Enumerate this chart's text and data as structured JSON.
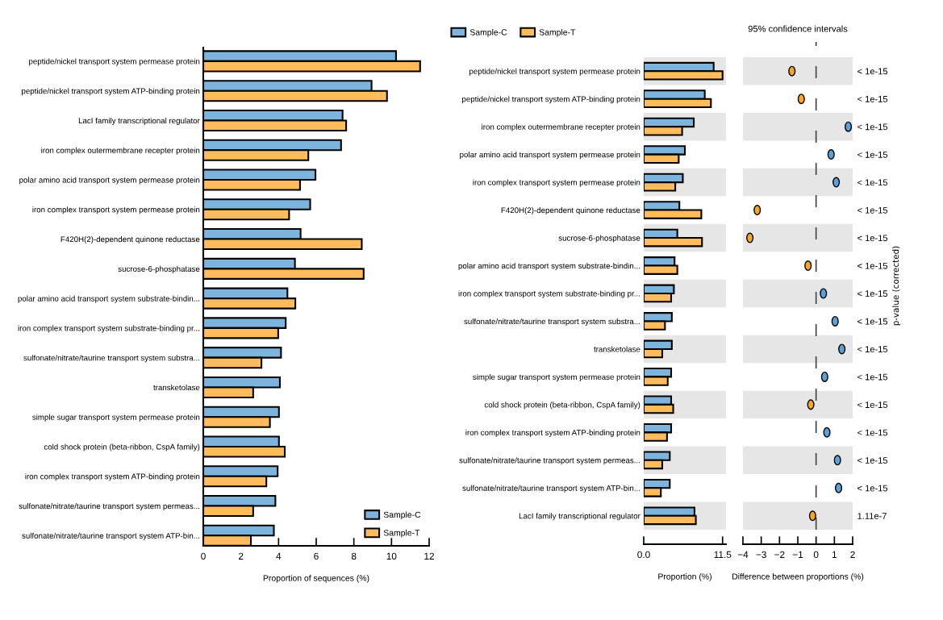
{
  "chart_data": [
    {
      "type": "bar",
      "orientation": "horizontal",
      "categories": [
        "peptide/nickel transport system permease protein",
        "peptide/nickel transport system ATP-binding protein",
        "LacI family transcriptional regulator",
        "iron complex outermembrane recepter protein",
        "polar amino acid transport system permease protein",
        "iron complex transport system permease protein",
        "F420H(2)-dependent quinone reductase",
        "sucrose-6-phosphatase",
        "polar amino acid transport system substrate-bindin...",
        "iron complex transport system substrate-binding pr...",
        "sulfonate/nitrate/taurine transport system substra...",
        "transketolase",
        "simple sugar transport system permease protein",
        "cold shock protein (beta-ribbon, CspA family)",
        "iron complex transport system ATP-binding protein",
        "sulfonate/nitrate/taurine transport system permeas...",
        "sulfonate/nitrate/taurine transport system ATP-bin..."
      ],
      "series": [
        {
          "name": "Sample-C",
          "color": "#7cb4de",
          "values": [
            10.24,
            8.94,
            7.4,
            7.32,
            5.96,
            5.68,
            5.17,
            4.87,
            4.47,
            4.38,
            4.13,
            4.07,
            4.02,
            4.02,
            3.95,
            3.83,
            3.75
          ]
        },
        {
          "name": "Sample-T",
          "color": "#ffbb5c",
          "values": [
            11.52,
            9.76,
            7.59,
            5.58,
            5.14,
            4.56,
            8.42,
            8.52,
            4.89,
            3.98,
            3.09,
            2.65,
            3.54,
            4.33,
            3.35,
            2.65,
            2.53
          ]
        }
      ],
      "xlabel": "Proportion of sequences (%)",
      "xlim": [
        0,
        12
      ],
      "xticks": [
        0,
        2,
        4,
        6,
        8,
        10,
        12
      ],
      "legend": "bottom right"
    },
    {
      "type": "bar",
      "orientation": "horizontal",
      "categories": [
        "peptide/nickel transport system permease protein",
        "peptide/nickel transport system ATP-binding protein",
        "iron complex outermembrane recepter protein",
        "polar amino acid transport system permease protein",
        "iron complex transport system permease protein",
        "F420H(2)-dependent quinone reductase",
        "sucrose-6-phosphatase",
        "polar amino acid transport system substrate-bindin...",
        "iron complex transport system substrate-binding pr...",
        "sulfonate/nitrate/taurine transport system substra...",
        "transketolase",
        "simple sugar transport system permease protein",
        "cold shock protein (beta-ribbon, CspA family)",
        "iron complex transport system ATP-binding protein",
        "sulfonate/nitrate/taurine transport system permeas...",
        "sulfonate/nitrate/taurine transport system ATP-bin...",
        "LacI family transcriptional regulator"
      ],
      "series": [
        {
          "name": "Sample-C",
          "color": "#7cb4de",
          "values": [
            10.2,
            8.9,
            7.3,
            6.0,
            5.7,
            5.2,
            4.9,
            4.5,
            4.4,
            4.1,
            4.1,
            4.0,
            4.0,
            4.0,
            3.8,
            3.8,
            7.4
          ]
        },
        {
          "name": "Sample-T",
          "color": "#ffbb5c",
          "values": [
            11.5,
            9.8,
            5.6,
            5.1,
            4.6,
            8.4,
            8.5,
            4.9,
            4.0,
            3.1,
            2.7,
            3.5,
            4.3,
            3.4,
            2.7,
            2.5,
            7.6
          ]
        }
      ],
      "xlabel": "Proportion (%)",
      "xlim": [
        0,
        12
      ],
      "xticks": [
        {
          "value": 0,
          "label": "0.0"
        },
        11.5
      ],
      "legend": "top left",
      "bands": [
        {
          "axis": "y",
          "from": "peptide/nickel transport system permease protein",
          "to": "peptide/nickel transport system permease protein",
          "color": "#e6e6e6"
        },
        {
          "axis": "y",
          "from": "iron complex outermembrane recepter protein",
          "to": "iron complex outermembrane recepter protein",
          "color": "#e6e6e6"
        },
        {
          "axis": "y",
          "from": "iron complex transport system permease protein",
          "to": "iron complex transport system permease protein",
          "color": "#e6e6e6"
        },
        {
          "axis": "y",
          "from": "sucrose-6-phosphatase",
          "to": "sucrose-6-phosphatase",
          "color": "#e6e6e6"
        },
        {
          "axis": "y",
          "from": "iron complex transport system substrate-binding pr...",
          "to": "iron complex transport system substrate-binding pr...",
          "color": "#e6e6e6"
        },
        {
          "axis": "y",
          "from": "transketolase",
          "to": "transketolase",
          "color": "#e6e6e6"
        },
        {
          "axis": "y",
          "from": "cold shock protein (beta-ribbon, CspA family)",
          "to": "cold shock protein (beta-ribbon, CspA family)",
          "color": "#e6e6e6"
        },
        {
          "axis": "y",
          "from": "sulfonate/nitrate/taurine transport system permeas...",
          "to": "sulfonate/nitrate/taurine transport system permeas...",
          "color": "#e6e6e6"
        },
        {
          "axis": "y",
          "from": "LacI family transcriptional regulator",
          "to": "LacI family transcriptional regulator",
          "color": "#e6e6e6"
        }
      ]
    },
    {
      "type": "scatter",
      "orientation": "horizontal",
      "title": "95% confidence intervals",
      "categories": [
        "peptide/nickel transport system permease protein",
        "peptide/nickel transport system ATP-binding protein",
        "iron complex outermembrane recepter protein",
        "polar amino acid transport system permease protein",
        "iron complex transport system permease protein",
        "F420H(2)-dependent quinone reductase",
        "sucrose-6-phosphatase",
        "polar amino acid transport system substrate-bindin...",
        "iron complex transport system substrate-binding pr...",
        "sulfonate/nitrate/taurine transport system substra...",
        "transketolase",
        "simple sugar transport system permease protein",
        "cold shock protein (beta-ribbon, CspA family)",
        "iron complex transport system ATP-binding protein",
        "sulfonate/nitrate/taurine transport system permeas...",
        "sulfonate/nitrate/taurine transport system ATP-bin...",
        "LacI family transcriptional regulator"
      ],
      "values": [
        -1.32,
        -0.81,
        1.76,
        0.82,
        1.1,
        -3.22,
        -3.62,
        -0.44,
        0.4,
        1.04,
        1.41,
        0.47,
        -0.29,
        0.59,
        1.17,
        1.23,
        -0.19
      ],
      "colors": [
        "#f6a623",
        "#f6a623",
        "#5aa2d8",
        "#5aa2d8",
        "#5aa2d8",
        "#f6a623",
        "#f6a623",
        "#f6a623",
        "#5aa2d8",
        "#5aa2d8",
        "#5aa2d8",
        "#5aa2d8",
        "#f6a623",
        "#5aa2d8",
        "#5aa2d8",
        "#5aa2d8",
        "#f6a623"
      ],
      "marker": "circle",
      "xlabel": "Difference between proportions (%)",
      "xlim": [
        -4,
        2
      ],
      "xticks": [
        {
          "value": -4,
          "label": "−4"
        },
        {
          "value": -3,
          "label": "−3"
        },
        {
          "value": -2,
          "label": "−2"
        },
        {
          "value": -1,
          "label": "−1"
        },
        0,
        1,
        2
      ],
      "tick_labels": "x",
      "y2_categories": [
        "< 1e-15",
        "< 1e-15",
        "< 1e-15",
        "< 1e-15",
        "< 1e-15",
        "< 1e-15",
        "< 1e-15",
        "< 1e-15",
        "< 1e-15",
        "< 1e-15",
        "< 1e-15",
        "< 1e-15",
        "< 1e-15",
        "< 1e-15",
        "< 1e-15",
        "< 1e-15",
        "1.11e-7"
      ],
      "y2label": "p-value (corrected)",
      "ref_lines": [
        {
          "axis": "x",
          "value": 0,
          "line_style": "dashed",
          "color": "#444444"
        }
      ],
      "bands": [
        {
          "axis": "y",
          "from": "peptide/nickel transport system permease protein",
          "to": "peptide/nickel transport system permease protein",
          "color": "#e6e6e6"
        },
        {
          "axis": "y",
          "from": "iron complex outermembrane recepter protein",
          "to": "iron complex outermembrane recepter protein",
          "color": "#e6e6e6"
        },
        {
          "axis": "y",
          "from": "iron complex transport system permease protein",
          "to": "iron complex transport system permease protein",
          "color": "#e6e6e6"
        },
        {
          "axis": "y",
          "from": "sucrose-6-phosphatase",
          "to": "sucrose-6-phosphatase",
          "color": "#e6e6e6"
        },
        {
          "axis": "y",
          "from": "iron complex transport system substrate-binding pr...",
          "to": "iron complex transport system substrate-binding pr...",
          "color": "#e6e6e6"
        },
        {
          "axis": "y",
          "from": "transketolase",
          "to": "transketolase",
          "color": "#e6e6e6"
        },
        {
          "axis": "y",
          "from": "cold shock protein (beta-ribbon, CspA family)",
          "to": "cold shock protein (beta-ribbon, CspA family)",
          "color": "#e6e6e6"
        },
        {
          "axis": "y",
          "from": "sulfonate/nitrate/taurine transport system permeas...",
          "to": "sulfonate/nitrate/taurine transport system permeas...",
          "color": "#e6e6e6"
        },
        {
          "axis": "y",
          "from": "LacI family transcriptional regulator",
          "to": "LacI family transcriptional regulator",
          "color": "#e6e6e6"
        }
      ]
    }
  ]
}
